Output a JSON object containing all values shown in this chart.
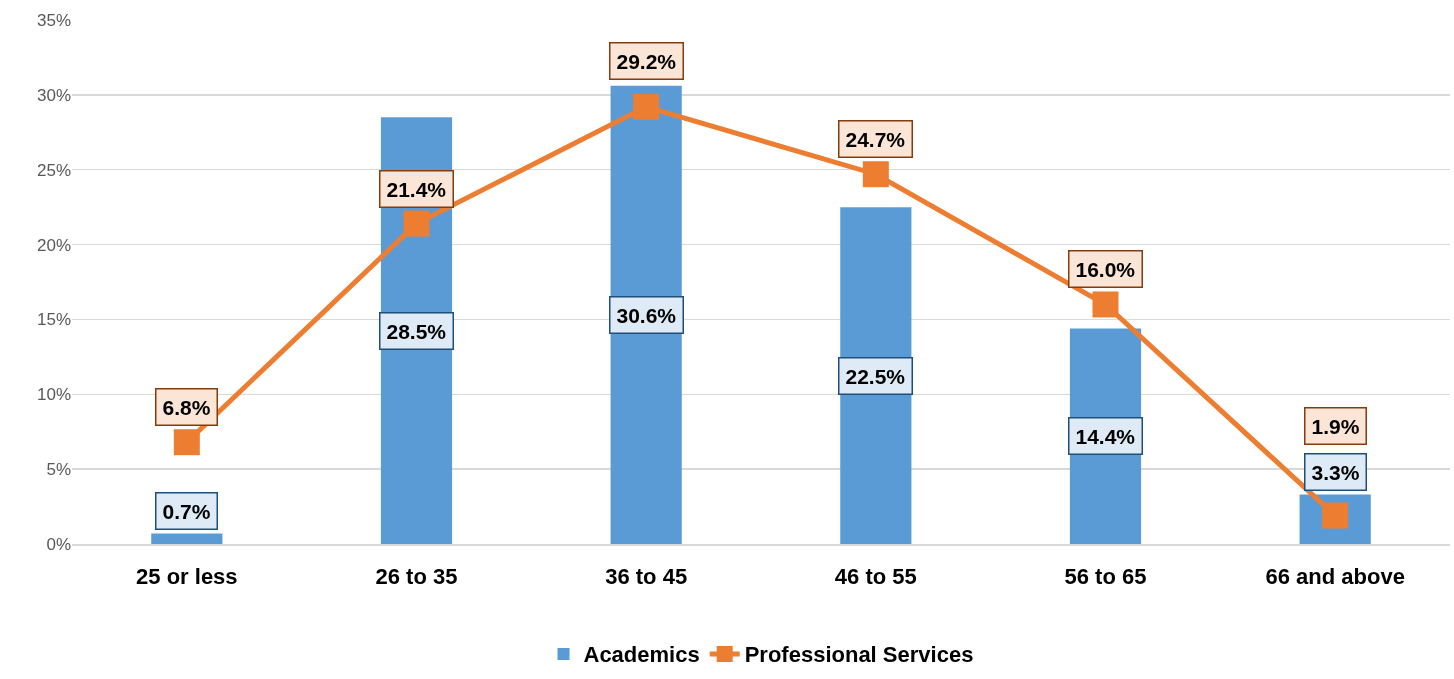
{
  "chart_data": {
    "type": "bar",
    "categories": [
      "25 or less",
      "26 to 35",
      "36 to 45",
      "46 to 55",
      "56 to 65",
      "66 and above"
    ],
    "series": [
      {
        "name": "Academics",
        "color": "#5b9bd5",
        "values": [
          0.7,
          28.5,
          30.6,
          22.5,
          14.4,
          3.3
        ],
        "value_labels": [
          "0.7%",
          "28.5%",
          "30.6%",
          "22.5%",
          "14.4%",
          "3.3%"
        ]
      },
      {
        "name": "Professional Services",
        "type": "line",
        "color": "#ed7d31",
        "marker": "square",
        "values": [
          6.8,
          21.4,
          29.2,
          24.7,
          16.0,
          1.9
        ],
        "value_labels": [
          "6.8%",
          "21.4%",
          "29.2%",
          "24.7%",
          "16.0%",
          "1.9%"
        ]
      }
    ],
    "ylim": [
      0,
      35
    ],
    "yticks": [
      {
        "value": 0,
        "label": "0%"
      },
      {
        "value": 5,
        "label": "5%"
      },
      {
        "value": 10,
        "label": "10%"
      },
      {
        "value": 15,
        "label": "15%"
      },
      {
        "value": 20,
        "label": "20%"
      },
      {
        "value": 25,
        "label": "25%"
      },
      {
        "value": 30,
        "label": "30%"
      },
      {
        "value": 35,
        "label": "35%"
      }
    ],
    "grid": "y",
    "legend": "bottom"
  }
}
